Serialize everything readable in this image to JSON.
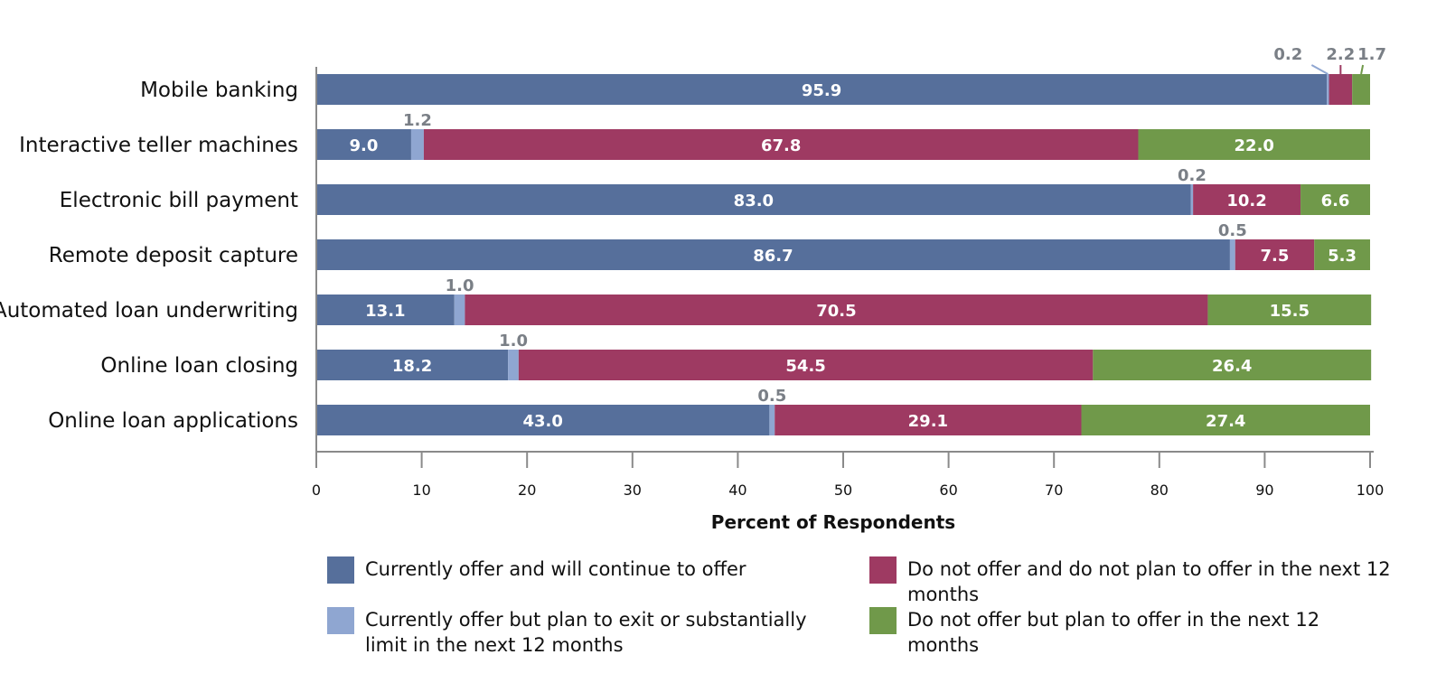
{
  "chart_data": {
    "type": "bar",
    "orientation": "horizontal",
    "stacked": true,
    "xlabel": "Percent of Respondents",
    "xlim": [
      0,
      100
    ],
    "xticks": [
      0,
      10,
      20,
      30,
      40,
      50,
      60,
      70,
      80,
      90,
      100
    ],
    "categories": [
      "Mobile banking",
      "Interactive teller machines",
      "Electronic bill payment",
      "Remote deposit capture",
      "Automated loan underwriting",
      "Online loan closing",
      "Online loan applications"
    ],
    "series": [
      {
        "name": "Currently offer and will continue to offer",
        "color": "#566f9b",
        "values": [
          95.9,
          9.0,
          83.0,
          86.7,
          13.1,
          18.2,
          43.0
        ]
      },
      {
        "name": "Currently offer but plan to exit or substantially limit in the next 12 months",
        "color": "#8fa6d1",
        "values": [
          0.2,
          1.2,
          0.2,
          0.5,
          1.0,
          1.0,
          0.5
        ]
      },
      {
        "name": "Do not offer and do not plan to offer in the next 12 months",
        "color": "#9e3a62",
        "values": [
          2.2,
          67.8,
          10.2,
          7.5,
          70.5,
          54.5,
          29.1
        ]
      },
      {
        "name": "Do not offer but plan to offer in the next 12 months",
        "color": "#70994a",
        "values": [
          1.7,
          22.0,
          6.6,
          5.3,
          15.5,
          26.4,
          27.4
        ]
      }
    ],
    "value_labels": [
      [
        "95.9",
        "0.2",
        "2.2",
        "1.7"
      ],
      [
        "9.0",
        "1.2",
        "67.8",
        "22.0"
      ],
      [
        "83.0",
        "0.2",
        "10.2",
        "6.6"
      ],
      [
        "86.7",
        "0.5",
        "7.5",
        "5.3"
      ],
      [
        "13.1",
        "1.0",
        "70.5",
        "15.5"
      ],
      [
        "18.2",
        "1.0",
        "54.5",
        "26.4"
      ],
      [
        "43.0",
        "0.5",
        "29.1",
        "27.4"
      ]
    ],
    "legend": [
      {
        "label": "Currently offer and will continue to offer",
        "color": "#566f9b"
      },
      {
        "label": "Do not offer and do not plan to offer in the next 12 months",
        "color": "#9e3a62"
      },
      {
        "label": "Currently offer but plan to exit or substantially limit in the next 12 months",
        "color": "#8fa6d1"
      },
      {
        "label": "Do not offer but plan to offer in the next 12 months",
        "color": "#70994a"
      }
    ],
    "legend_position": "bottom"
  }
}
